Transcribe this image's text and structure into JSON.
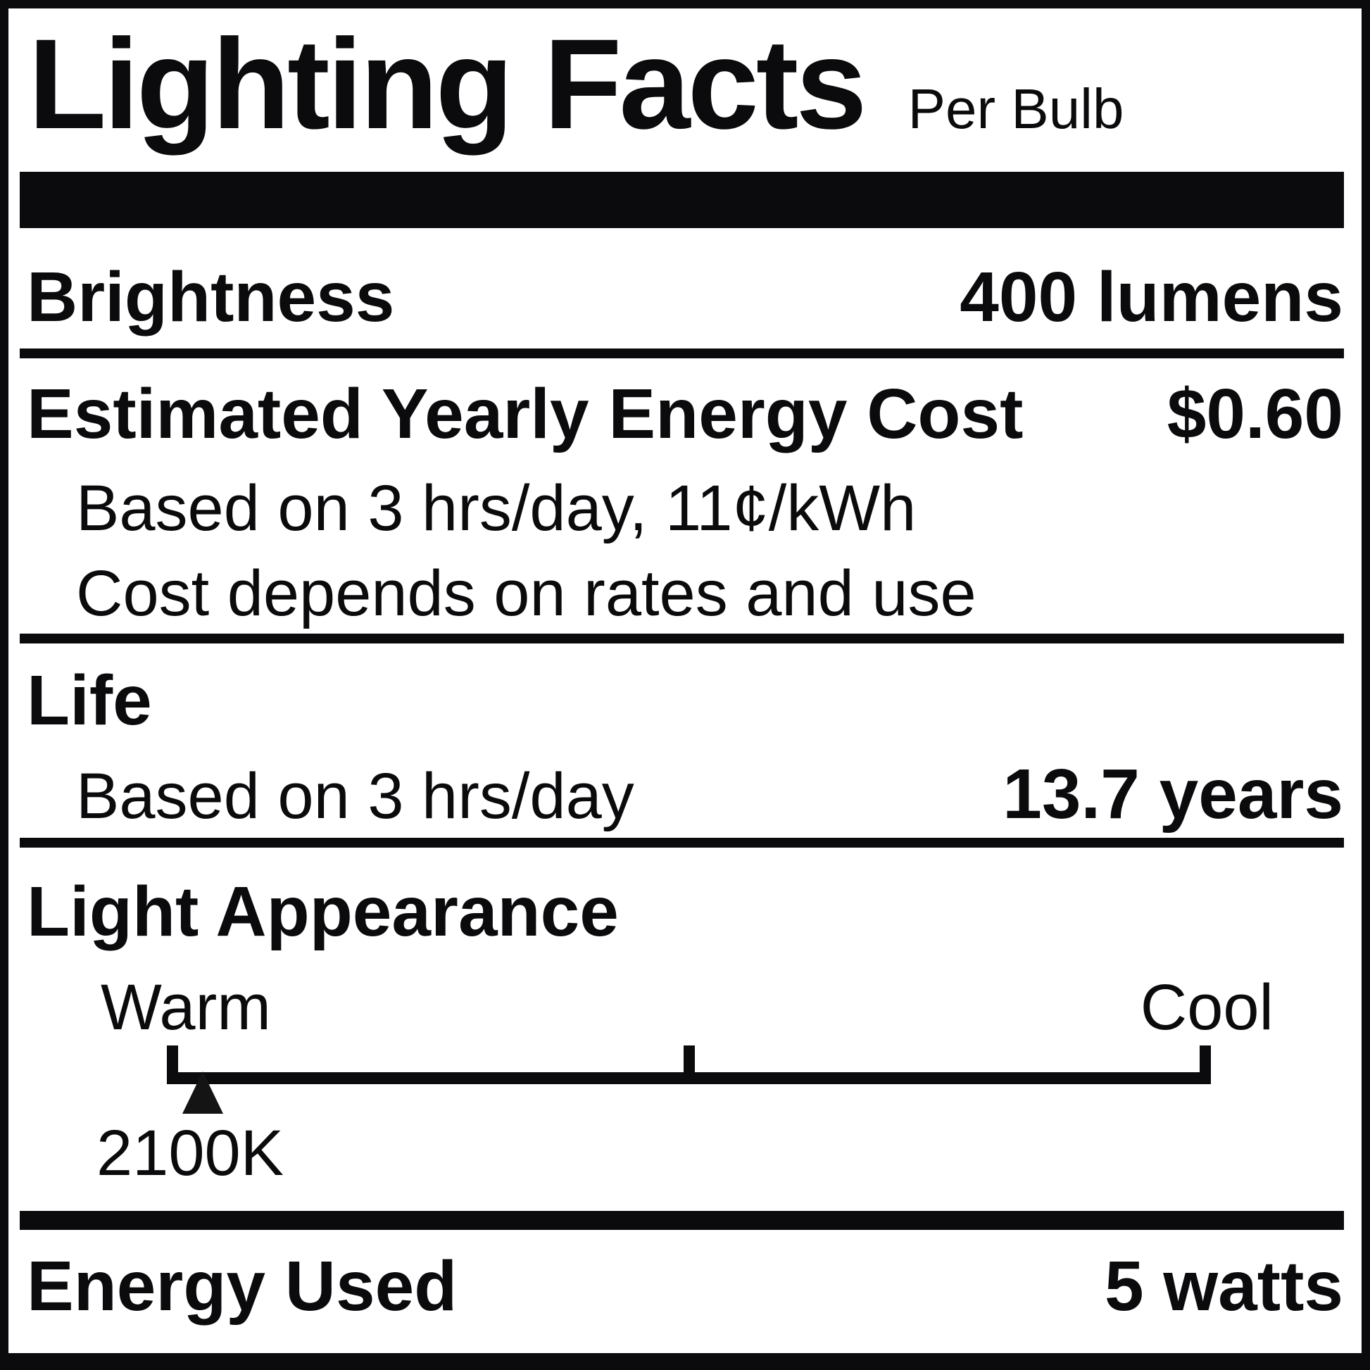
{
  "label": {
    "title": "Lighting Facts",
    "subtitle": "Per Bulb",
    "brightness": {
      "label": "Brightness",
      "value": "400 lumens"
    },
    "energy_cost": {
      "label": "Estimated Yearly Energy Cost",
      "value": "$0.60",
      "basis": "Based on 3 hrs/day, 11¢/kWh",
      "note": "Cost depends on rates and use"
    },
    "life": {
      "label": "Life",
      "basis": "Based on 3 hrs/day",
      "value": "13.7 years"
    },
    "light_appearance": {
      "label": "Light Appearance",
      "warm_label": "Warm",
      "cool_label": "Cool",
      "temperature": "2100K"
    },
    "energy_used": {
      "label": "Energy Used",
      "value": "5 watts"
    }
  },
  "colors": {
    "ink": "#0b0b0d",
    "background": "#ffffff"
  }
}
